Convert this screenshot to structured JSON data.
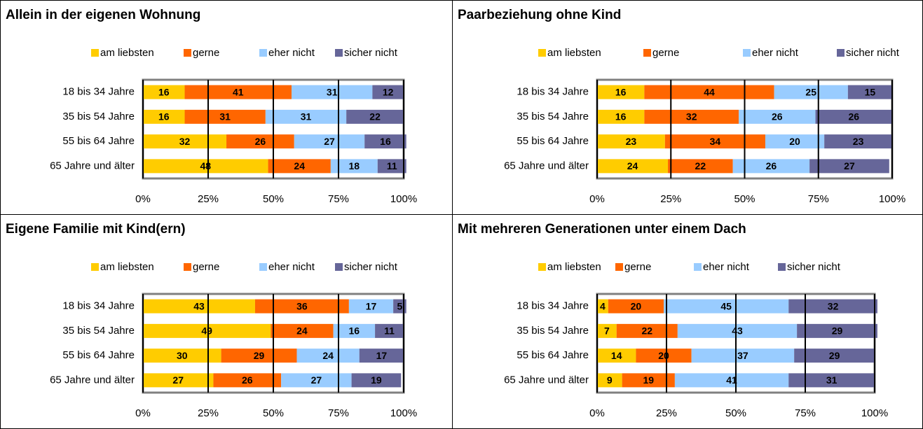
{
  "chart_data": [
    {
      "type": "bar",
      "orientation": "horizontal",
      "title": "Allein in der eigenen Wohnung",
      "categories": [
        "18 bis 34 Jahre",
        "35 bis 54 Jahre",
        "55 bis 64 Jahre",
        "65 Jahre und älter"
      ],
      "series": [
        {
          "name": "am liebsten",
          "color": "#ffcc00",
          "values": [
            16,
            16,
            32,
            48
          ]
        },
        {
          "name": "gerne",
          "color": "#ff6600",
          "values": [
            41,
            31,
            26,
            24
          ]
        },
        {
          "name": "eher nicht",
          "color": "#99ccff",
          "values": [
            31,
            31,
            27,
            18
          ]
        },
        {
          "name": "sicher nicht",
          "color": "#666699",
          "values": [
            12,
            22,
            16,
            11
          ]
        }
      ],
      "xlim": [
        0,
        100
      ],
      "xticks": [
        {
          "value": 0,
          "label": "0%"
        },
        {
          "value": 25,
          "label": "25%"
        },
        {
          "value": 50,
          "label": "50%"
        },
        {
          "value": 75,
          "label": "75%"
        },
        {
          "value": 100,
          "label": "100%"
        }
      ],
      "grid": true,
      "legend": "top"
    },
    {
      "type": "bar",
      "orientation": "horizontal",
      "title": "Paarbeziehung ohne Kind",
      "categories": [
        "18 bis 34 Jahre",
        "35 bis 54 Jahre",
        "55 bis 64 Jahre",
        "65 Jahre und älter"
      ],
      "series": [
        {
          "name": "am liebsten",
          "color": "#ffcc00",
          "values": [
            16,
            16,
            23,
            24
          ]
        },
        {
          "name": "gerne",
          "color": "#ff6600",
          "values": [
            44,
            32,
            34,
            22
          ]
        },
        {
          "name": "eher nicht",
          "color": "#99ccff",
          "values": [
            25,
            26,
            20,
            26
          ]
        },
        {
          "name": "sicher nicht",
          "color": "#666699",
          "values": [
            15,
            26,
            23,
            27
          ]
        }
      ],
      "xlim": [
        0,
        100
      ],
      "xticks": [
        {
          "value": 0,
          "label": "0%"
        },
        {
          "value": 25,
          "label": "25%"
        },
        {
          "value": 50,
          "label": "50%"
        },
        {
          "value": 75,
          "label": "75%"
        },
        {
          "value": 100,
          "label": "100%"
        }
      ],
      "grid": true,
      "legend": "top"
    },
    {
      "type": "bar",
      "orientation": "horizontal",
      "title": "Eigene Familie mit Kind(ern)",
      "categories": [
        "18 bis 34 Jahre",
        "35 bis 54 Jahre",
        "55 bis 64 Jahre",
        "65 Jahre und älter"
      ],
      "series": [
        {
          "name": "am liebsten",
          "color": "#ffcc00",
          "values": [
            43,
            49,
            30,
            27
          ]
        },
        {
          "name": "gerne",
          "color": "#ff6600",
          "values": [
            36,
            24,
            29,
            26
          ]
        },
        {
          "name": "eher nicht",
          "color": "#99ccff",
          "values": [
            17,
            16,
            24,
            27
          ]
        },
        {
          "name": "sicher nicht",
          "color": "#666699",
          "values": [
            5,
            11,
            17,
            19
          ]
        }
      ],
      "xlim": [
        0,
        100
      ],
      "xticks": [
        {
          "value": 0,
          "label": "0%"
        },
        {
          "value": 25,
          "label": "25%"
        },
        {
          "value": 50,
          "label": "50%"
        },
        {
          "value": 75,
          "label": "75%"
        },
        {
          "value": 100,
          "label": "100%"
        }
      ],
      "grid": true,
      "legend": "top"
    },
    {
      "type": "bar",
      "orientation": "horizontal",
      "title": "Mit mehreren Generationen unter einem Dach",
      "categories": [
        "18 bis 34 Jahre",
        "35 bis 54 Jahre",
        "55 bis 64 Jahre",
        "65 Jahre und älter"
      ],
      "series": [
        {
          "name": "am liebsten",
          "color": "#ffcc00",
          "values": [
            4,
            7,
            14,
            9
          ]
        },
        {
          "name": "gerne",
          "color": "#ff6600",
          "values": [
            20,
            22,
            20,
            19
          ]
        },
        {
          "name": "eher nicht",
          "color": "#99ccff",
          "values": [
            45,
            43,
            37,
            41
          ]
        },
        {
          "name": "sicher nicht",
          "color": "#666699",
          "values": [
            32,
            29,
            29,
            31
          ]
        }
      ],
      "xlim": [
        0,
        100
      ],
      "xticks": [
        {
          "value": 0,
          "label": "0%"
        },
        {
          "value": 25,
          "label": "25%"
        },
        {
          "value": 50,
          "label": "50%"
        },
        {
          "value": 75,
          "label": "75%"
        },
        {
          "value": 100,
          "label": "100%"
        }
      ],
      "grid": true,
      "legend": "top"
    }
  ]
}
